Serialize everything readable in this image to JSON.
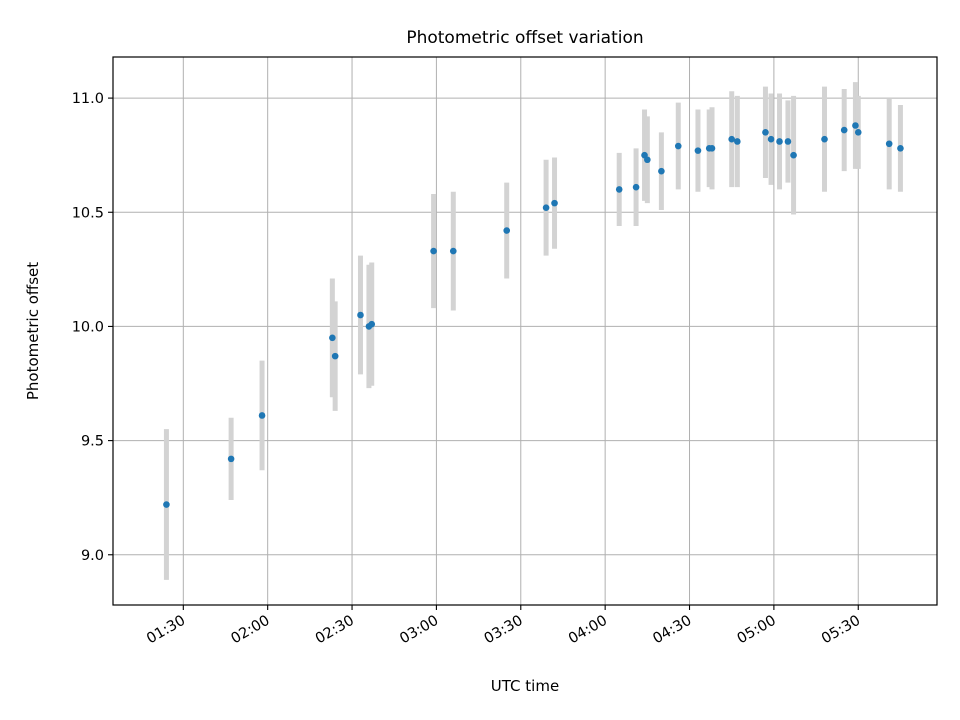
{
  "chart_data": {
    "type": "scatter",
    "title": "Photometric offset variation",
    "xlabel": "UTC time",
    "ylabel": "Photometric offset",
    "x_unit": "UTC time (HH:MM)",
    "xlim": [
      "01:05",
      "05:58"
    ],
    "ylim": [
      8.78,
      11.18
    ],
    "x_ticks": [
      "01:30",
      "02:00",
      "02:30",
      "03:00",
      "03:30",
      "04:00",
      "04:30",
      "05:00",
      "05:30"
    ],
    "y_ticks": [
      9.0,
      9.5,
      10.0,
      10.5,
      11.0
    ],
    "y_tick_labels": [
      "9.0",
      "9.5",
      "10.0",
      "10.5",
      "11.0"
    ],
    "grid": true,
    "marker_color": "#1f77b4",
    "errorbar_color": "#d3d3d3",
    "points": [
      {
        "x": "01:24",
        "y": 9.22,
        "err": 0.33
      },
      {
        "x": "01:47",
        "y": 9.42,
        "err": 0.18
      },
      {
        "x": "01:58",
        "y": 9.61,
        "err": 0.24
      },
      {
        "x": "02:23",
        "y": 9.95,
        "err": 0.26
      },
      {
        "x": "02:24",
        "y": 9.87,
        "err": 0.24
      },
      {
        "x": "02:33",
        "y": 10.05,
        "err": 0.26
      },
      {
        "x": "02:36",
        "y": 10.0,
        "err": 0.27
      },
      {
        "x": "02:37",
        "y": 10.01,
        "err": 0.27
      },
      {
        "x": "02:59",
        "y": 10.33,
        "err": 0.25
      },
      {
        "x": "03:06",
        "y": 10.33,
        "err": 0.26
      },
      {
        "x": "03:25",
        "y": 10.42,
        "err": 0.21
      },
      {
        "x": "03:39",
        "y": 10.52,
        "err": 0.21
      },
      {
        "x": "03:42",
        "y": 10.54,
        "err": 0.2
      },
      {
        "x": "04:05",
        "y": 10.6,
        "err": 0.16
      },
      {
        "x": "04:11",
        "y": 10.61,
        "err": 0.17
      },
      {
        "x": "04:14",
        "y": 10.75,
        "err": 0.2
      },
      {
        "x": "04:15",
        "y": 10.73,
        "err": 0.19
      },
      {
        "x": "04:20",
        "y": 10.68,
        "err": 0.17
      },
      {
        "x": "04:26",
        "y": 10.79,
        "err": 0.19
      },
      {
        "x": "04:33",
        "y": 10.77,
        "err": 0.18
      },
      {
        "x": "04:37",
        "y": 10.78,
        "err": 0.17
      },
      {
        "x": "04:38",
        "y": 10.78,
        "err": 0.18
      },
      {
        "x": "04:45",
        "y": 10.82,
        "err": 0.21
      },
      {
        "x": "04:47",
        "y": 10.81,
        "err": 0.2
      },
      {
        "x": "04:57",
        "y": 10.85,
        "err": 0.2
      },
      {
        "x": "04:59",
        "y": 10.82,
        "err": 0.2
      },
      {
        "x": "05:02",
        "y": 10.81,
        "err": 0.21
      },
      {
        "x": "05:05",
        "y": 10.81,
        "err": 0.18
      },
      {
        "x": "05:07",
        "y": 10.75,
        "err": 0.26
      },
      {
        "x": "05:18",
        "y": 10.82,
        "err": 0.23
      },
      {
        "x": "05:25",
        "y": 10.86,
        "err": 0.18
      },
      {
        "x": "05:29",
        "y": 10.88,
        "err": 0.19
      },
      {
        "x": "05:30",
        "y": 10.85,
        "err": 0.16
      },
      {
        "x": "05:41",
        "y": 10.8,
        "err": 0.2
      },
      {
        "x": "05:45",
        "y": 10.78,
        "err": 0.19
      }
    ]
  }
}
